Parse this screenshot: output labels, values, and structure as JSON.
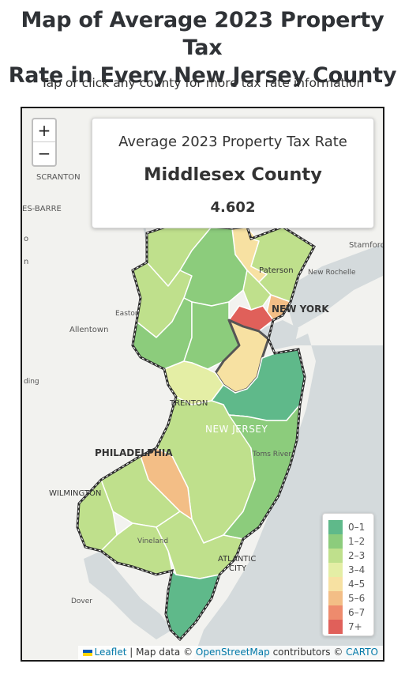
{
  "page": {
    "title_line1": "Map of Average 2023 Property Tax",
    "title_line2": "Rate in Every New Jersey County",
    "subtitle": "Tap or click any county for more tax rate information"
  },
  "zoom": {
    "in_label": "+",
    "out_label": "−"
  },
  "info_box": {
    "heading": "Average 2023 Property Tax Rate",
    "county": "Middlesex County",
    "value": "4.602"
  },
  "legend": {
    "items": [
      {
        "label": "0–1",
        "color": "#5fb98a"
      },
      {
        "label": "1–2",
        "color": "#8ccc7c"
      },
      {
        "label": "2–3",
        "color": "#bfe08c"
      },
      {
        "label": "3–4",
        "color": "#e4eea5"
      },
      {
        "label": "4–5",
        "color": "#f7e1a2"
      },
      {
        "label": "5–6",
        "color": "#f3be86"
      },
      {
        "label": "6–7",
        "color": "#ee8b6d"
      },
      {
        "label": "7+",
        "color": "#e0605a"
      }
    ]
  },
  "basemap_labels": {
    "scranton": "SCRANTON",
    "wilkes_barre": "ES-BARRE",
    "stamford": "Stamford",
    "paterson": "Paterson",
    "new_rochelle": "New Rochelle",
    "new_york": "NEW YORK",
    "easton": "Easton",
    "allentown": "Allentown",
    "reading": "ding",
    "trenton": "TRENTON",
    "new_jersey": "NEW JERSEY",
    "toms_river": "Toms River",
    "philadelphia": "PHILADELPHIA",
    "wilmington": "WILMINGTON",
    "vineland": "Vineland",
    "atlantic_city_1": "ATLANTIC",
    "atlantic_city_2": "CITY",
    "dover": "Dover",
    "edge_o": "o",
    "edge_n": "n"
  },
  "attribution": {
    "leaflet": "Leaflet",
    "sep1": " | Map data © ",
    "osm": "OpenStreetMap",
    "sep2": " contributors © ",
    "carto": "CARTO"
  },
  "colors": {
    "water": "#d4dadc",
    "land": "#f2f2ef",
    "county_border": "#ffffff",
    "state_outline": "#2b2b2b",
    "selected_outline": "#555555"
  }
}
